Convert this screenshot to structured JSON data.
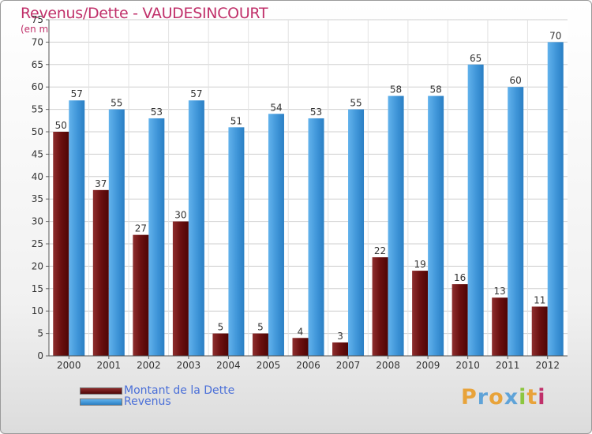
{
  "title": "Revenus/Dette - VAUDESINCOURT",
  "subtitle": "(en milliers d'€)",
  "logo": {
    "text": "Proxiti",
    "letter_colors": [
      "#e8a33a",
      "#5fa3d8",
      "#e8a33a",
      "#5fa3d8",
      "#8cc63f",
      "#e8a33a",
      "#c0306a"
    ]
  },
  "colors": {
    "dette": "#7a1f1f",
    "revenus": "#4fa3e3"
  },
  "chart_data": {
    "type": "bar",
    "categories": [
      "2000",
      "2001",
      "2002",
      "2003",
      "2004",
      "2005",
      "2006",
      "2007",
      "2008",
      "2009",
      "2010",
      "2011",
      "2012"
    ],
    "series": [
      {
        "name": "Montant de la Dette",
        "values": [
          50,
          37,
          27,
          30,
          5,
          5,
          4,
          3,
          22,
          19,
          16,
          13,
          11
        ]
      },
      {
        "name": "Revenus",
        "values": [
          57,
          55,
          53,
          57,
          51,
          54,
          53,
          55,
          58,
          58,
          65,
          60,
          70
        ]
      }
    ],
    "ylim": [
      0,
      75
    ],
    "yticks": [
      0,
      5,
      10,
      15,
      20,
      25,
      30,
      35,
      40,
      45,
      50,
      55,
      60,
      65,
      70,
      75
    ],
    "grid": true,
    "legend_position": "bottom-left"
  }
}
